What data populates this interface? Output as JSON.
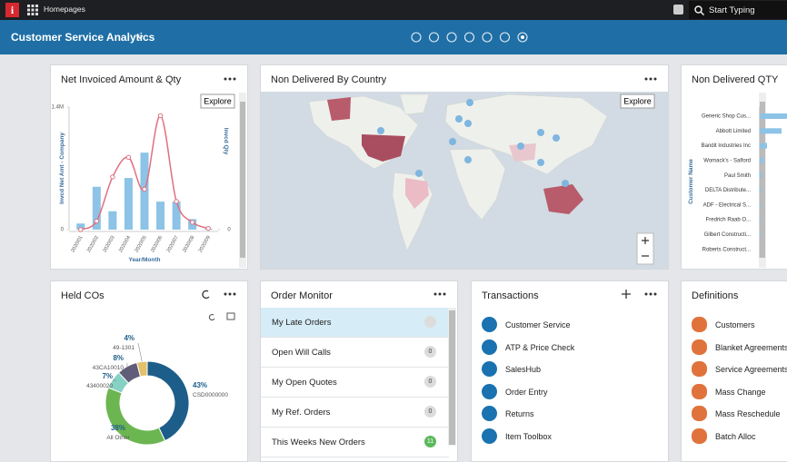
{
  "topbar": {
    "app": "Homepages",
    "search": "Start Typing"
  },
  "header": {
    "title": "Customer Service Analytics"
  },
  "chart_data": [
    {
      "type": "bar",
      "title": "Net Invoiced Amount & Qty",
      "button": "Explore",
      "categories": [
        "2020/01",
        "2020/02",
        "2020/03",
        "2020/04",
        "2020/05",
        "2020/06",
        "2020/07",
        "2020/08",
        "2020/09"
      ],
      "series": [
        {
          "type": "bar",
          "color": "#8cc3e6",
          "values": [
            70000,
            490000,
            210000,
            590000,
            880000,
            320000,
            320000,
            120000,
            10000
          ]
        },
        {
          "type": "line",
          "axis": "y2",
          "color": "#e0707f",
          "values": [
            0,
            7,
            43,
            59,
            33,
            93,
            23,
            6,
            1
          ]
        }
      ],
      "ylabel": "Invcd Net Amt - Company",
      "y2label": "Invcd Qty",
      "xlabel": "Year/Month",
      "ylim": [
        0,
        1400000
      ],
      "yticks": [
        0,
        {
          "value": 1400000,
          "label": "1.4M"
        }
      ],
      "y2lim": [
        0,
        100
      ],
      "y2ticks": [
        0
      ]
    },
    {
      "type": "pie",
      "donut": true,
      "title": "Held COs",
      "categories": [
        "CSD0000000",
        "All Other",
        "43400020",
        "43CA10010",
        "49-1301"
      ],
      "values": [
        43,
        38,
        7,
        8,
        4
      ],
      "value_labels": [
        "43%",
        "38%",
        "7%",
        "8%",
        "4%"
      ],
      "colors": [
        "#1d5d89",
        "#6cb651",
        "#86d0c4",
        "#5f5d78",
        "#e3c06b"
      ]
    },
    {
      "type": "bar",
      "orientation": "horizontal",
      "title": "Non Delivered QTY",
      "ylabel": "Customer Name",
      "color": "#8cc3e6",
      "categories": [
        "Generic Shop Cus...",
        "Abbott Limited",
        "Bandit Industries Inc",
        "Womack's - Salford",
        "Paul Smith",
        "DELTA Distribute...",
        "ADF - Electrical S...",
        "Fredrich Raab O...",
        "Gilbert Constructi...",
        "Roberts Construct..."
      ],
      "values": [
        8,
        6,
        2,
        1,
        0.6,
        0.4,
        0.3,
        0.2,
        0.2,
        0.1
      ],
      "xlim": [
        0,
        10
      ]
    }
  ],
  "map_card": {
    "title": "Non Delivered By Country",
    "button": "Explore"
  },
  "order_monitor": {
    "title": "Order Monitor",
    "items": [
      {
        "label": "My Late Orders"
      },
      {
        "label": "Open Will Calls",
        "count": 0
      },
      {
        "label": "My Open Quotes",
        "count": 0
      },
      {
        "label": "My Ref. Orders",
        "count": 0
      },
      {
        "label": "This Weeks New Orders",
        "count": 11
      }
    ]
  },
  "transactions": {
    "title": "Transactions",
    "items": [
      "Customer Service",
      "ATP & Price Check",
      "SalesHub",
      "Order Entry",
      "Returns",
      "Item Toolbox"
    ]
  },
  "definitions": {
    "title": "Definitions",
    "items": [
      "Customers",
      "Blanket Agreements",
      "Service Agreements",
      "Mass Change",
      "Mass Reschedule",
      "Batch Alloc"
    ]
  }
}
